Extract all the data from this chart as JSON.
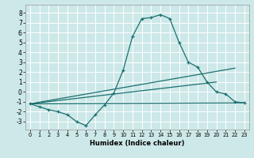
{
  "xlabel": "Humidex (Indice chaleur)",
  "bg_color": "#cde8e8",
  "grid_color": "#ffffff",
  "line_color": "#1a7070",
  "xlim": [
    -0.5,
    23.5
  ],
  "ylim": [
    -3.8,
    8.8
  ],
  "xticks": [
    0,
    1,
    2,
    3,
    4,
    5,
    6,
    7,
    8,
    9,
    10,
    11,
    12,
    13,
    14,
    15,
    16,
    17,
    18,
    19,
    20,
    21,
    22,
    23
  ],
  "yticks": [
    -3,
    -2,
    -1,
    0,
    1,
    2,
    3,
    4,
    5,
    6,
    7,
    8
  ],
  "line1_x": [
    0,
    1,
    2,
    3,
    4,
    5,
    6,
    7,
    8,
    9,
    10,
    11,
    12,
    13,
    14,
    15,
    16,
    17,
    18,
    19,
    20,
    21,
    22,
    23
  ],
  "line1_y": [
    -1.2,
    -1.5,
    -1.8,
    -2.0,
    -2.3,
    -3.0,
    -3.4,
    -2.3,
    -1.3,
    -0.1,
    2.2,
    5.6,
    7.4,
    7.5,
    7.8,
    7.4,
    5.0,
    3.0,
    2.5,
    1.0,
    0.0,
    -0.2,
    -1.0,
    -1.1
  ],
  "line2_x": [
    0,
    23
  ],
  "line2_y": [
    -1.2,
    -1.1
  ],
  "line3_x": [
    0,
    22
  ],
  "line3_y": [
    -1.2,
    2.4
  ],
  "line4_x": [
    0,
    20
  ],
  "line4_y": [
    -1.2,
    1.0
  ]
}
